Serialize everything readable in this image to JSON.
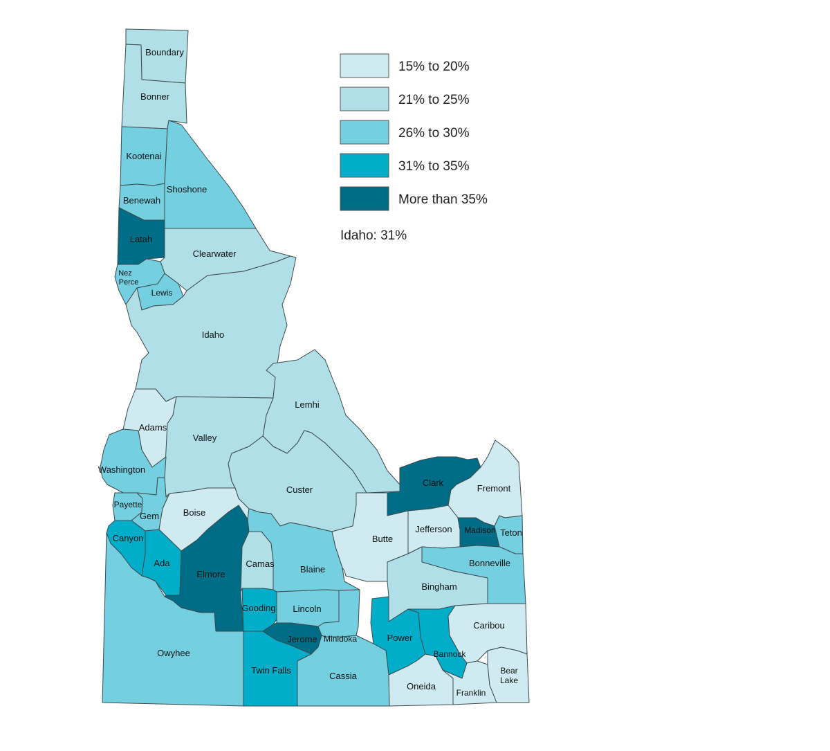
{
  "legend": {
    "classes": [
      {
        "label": "15% to 20%",
        "color": "#cfeaf0"
      },
      {
        "label": "21% to 25%",
        "color": "#b0dfe8"
      },
      {
        "label": "26% to 30%",
        "color": "#74cfe0"
      },
      {
        "label": "31% to 35%",
        "color": "#00aec9"
      },
      {
        "label": "More than 35%",
        "color": "#006d86"
      }
    ],
    "state_note": "Idaho: 31%"
  },
  "counties": {
    "boundary": {
      "name": "Boundary",
      "class": 1
    },
    "bonner": {
      "name": "Bonner",
      "class": 1
    },
    "kootenai": {
      "name": "Kootenai",
      "class": 2
    },
    "shoshone": {
      "name": "Shoshone",
      "class": 2
    },
    "benewah": {
      "name": "Benewah",
      "class": 2
    },
    "latah": {
      "name": "Latah",
      "class": 4
    },
    "clearwater": {
      "name": "Clearwater",
      "class": 1
    },
    "nezperce": {
      "name": "Nez Perce",
      "name_line1": "Nez",
      "name_line2": "Perce",
      "class": 2
    },
    "lewis": {
      "name": "Lewis",
      "class": 2
    },
    "idaho": {
      "name": "Idaho",
      "class": 1
    },
    "lemhi": {
      "name": "Lemhi",
      "class": 1
    },
    "adams": {
      "name": "Adams",
      "class": 0
    },
    "valley": {
      "name": "Valley",
      "class": 1
    },
    "washington": {
      "name": "Washington",
      "class": 2
    },
    "payette": {
      "name": "Payette",
      "class": 2
    },
    "gem": {
      "name": "Gem",
      "class": 2
    },
    "boise": {
      "name": "Boise",
      "class": 0
    },
    "custer": {
      "name": "Custer",
      "class": 1
    },
    "clark": {
      "name": "Clark",
      "class": 4
    },
    "fremont": {
      "name": "Fremont",
      "class": 0
    },
    "canyon": {
      "name": "Canyon",
      "class": 3
    },
    "ada": {
      "name": "Ada",
      "class": 3
    },
    "elmore": {
      "name": "Elmore",
      "class": 4
    },
    "camas": {
      "name": "Camas",
      "class": 1
    },
    "blaine": {
      "name": "Blaine",
      "class": 2
    },
    "butte": {
      "name": "Butte",
      "class": 0
    },
    "jefferson": {
      "name": "Jefferson",
      "class": 0
    },
    "madison": {
      "name": "Madison",
      "class": 4
    },
    "teton": {
      "name": "Teton",
      "class": 2
    },
    "bonneville": {
      "name": "Bonneville",
      "class": 2
    },
    "bingham": {
      "name": "Bingham",
      "class": 1
    },
    "gooding": {
      "name": "Gooding",
      "class": 3
    },
    "lincoln": {
      "name": "Lincoln",
      "class": 2
    },
    "jerome": {
      "name": "Jerome",
      "class": 4
    },
    "minidoka": {
      "name": "Minidoka",
      "class": 2
    },
    "power": {
      "name": "Power",
      "class": 3
    },
    "bannock": {
      "name": "Bannock",
      "class": 3
    },
    "caribou": {
      "name": "Caribou",
      "class": 0
    },
    "owyhee": {
      "name": "Owyhee",
      "class": 2
    },
    "twinfalls": {
      "name": "Twin Falls",
      "class": 3
    },
    "cassia": {
      "name": "Cassia",
      "class": 2
    },
    "oneida": {
      "name": "Oneida",
      "class": 0
    },
    "franklin": {
      "name": "Franklin",
      "class": 0
    },
    "bearlake": {
      "name": "Bear Lake",
      "name_line1": "Bear",
      "name_line2": "Lake",
      "class": 0
    }
  }
}
